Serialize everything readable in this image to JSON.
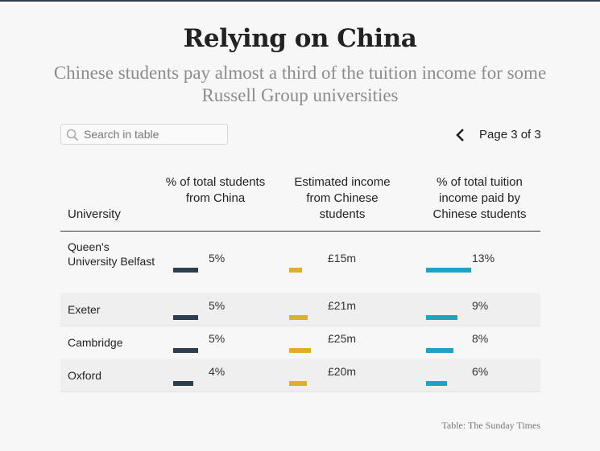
{
  "title": "Relying on China",
  "subtitle": "Chinese students pay almost a third of the tuition income for some Russell Group universities",
  "search": {
    "placeholder": "Search in table"
  },
  "pager": {
    "label": "Page 3 of 3"
  },
  "table": {
    "columns": [
      "University",
      "% of total students from China",
      "Estimated income from Chinese students",
      "% of total tuition income paid by Chinese students"
    ],
    "rows": [
      {
        "university": "Queen's University Belfast",
        "students_pct": "5%",
        "income": "£15m",
        "tuition_pct": "13%",
        "students_pct_value": 5,
        "income_value": 15,
        "tuition_pct_value": 13
      },
      {
        "university": "Exeter",
        "students_pct": "5%",
        "income": "£21m",
        "tuition_pct": "9%",
        "students_pct_value": 5,
        "income_value": 21,
        "tuition_pct_value": 9
      },
      {
        "university": "Cambridge",
        "students_pct": "5%",
        "income": "£25m",
        "tuition_pct": "8%",
        "students_pct_value": 5,
        "income_value": 25,
        "tuition_pct_value": 8
      },
      {
        "university": "Oxford",
        "students_pct": "4%",
        "income": "£20m",
        "tuition_pct": "6%",
        "students_pct_value": 4,
        "income_value": 20,
        "tuition_pct_value": 6
      }
    ]
  },
  "colors": {
    "students_bar": "#2c3e50",
    "income_bar": "#e0ac2b",
    "tuition_bar": "#1fa2c4"
  },
  "source": "Table: The Sunday Times"
}
